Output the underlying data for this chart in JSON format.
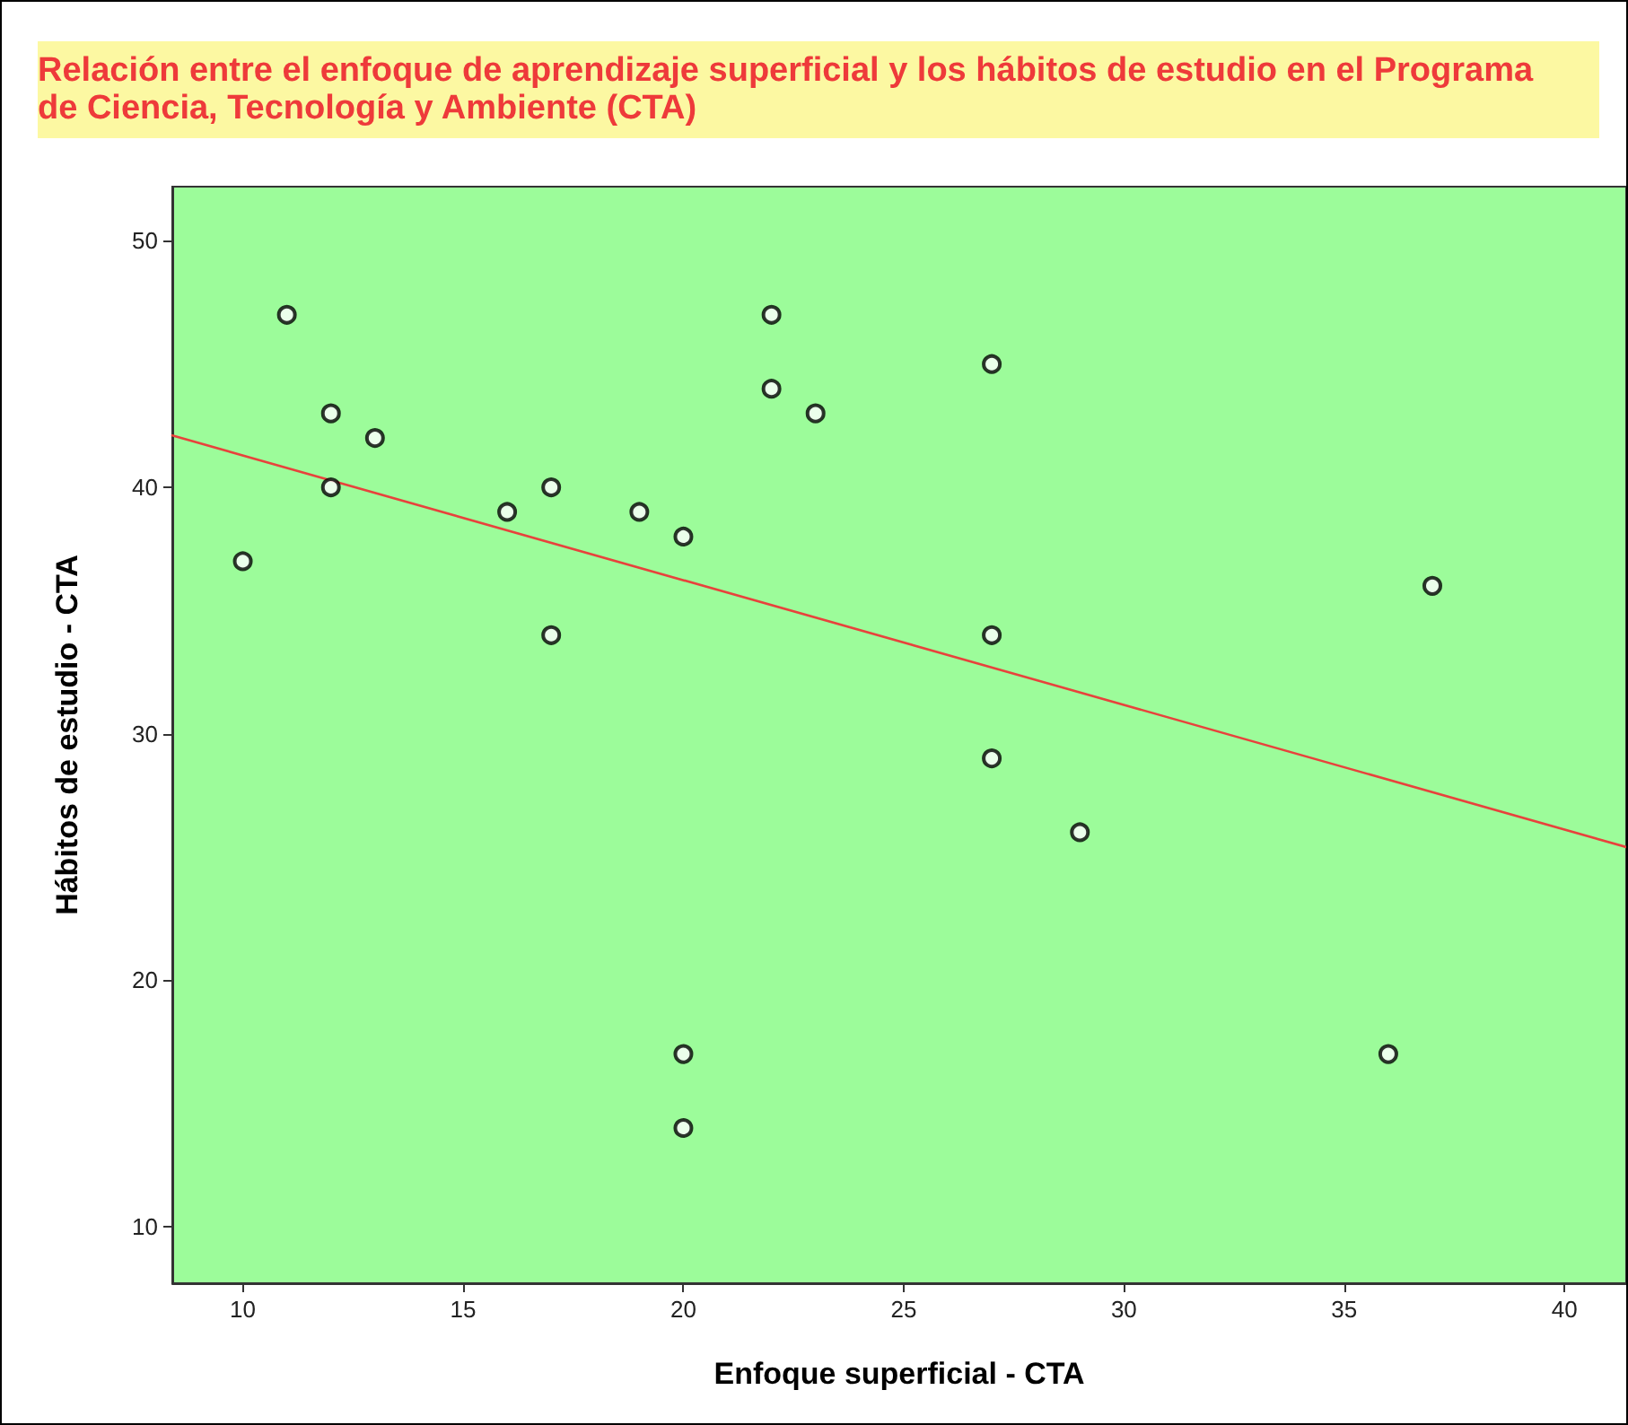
{
  "chart_data": {
    "type": "scatter",
    "title": "Relación entre el enfoque de aprendizaje superficial y los hábitos de estudio en el Programa de Ciencia, Tecnología y Ambiente (CTA)",
    "xlabel": "Enfoque superficial - CTA",
    "ylabel": "Hábitos de estudio - CTA",
    "series": [
      {
        "color": "#000000",
        "marker": "circle",
        "x": [
          10,
          11,
          12,
          12,
          13,
          16,
          17,
          17,
          19,
          20,
          20,
          20,
          22,
          22,
          23,
          27,
          27,
          27,
          29,
          36,
          37
        ],
        "values": [
          37,
          47,
          43,
          40,
          42,
          39,
          40,
          34,
          39,
          38,
          17,
          14,
          47,
          44,
          43,
          45,
          34,
          29,
          26,
          17,
          36
        ]
      },
      {
        "type": "line",
        "color": "#e8423c",
        "line_style": "solid",
        "marker": "none",
        "x": [
          8.4,
          41.4
        ],
        "values": [
          42.1,
          25.4
        ]
      }
    ],
    "xlim": [
      8.4,
      41.4
    ],
    "ylim": [
      7.7,
      52.2
    ],
    "xticks": [
      10,
      15,
      20,
      25,
      30,
      35,
      40
    ],
    "yticks": [
      10,
      20,
      30,
      40,
      50
    ],
    "grid": false
  }
}
